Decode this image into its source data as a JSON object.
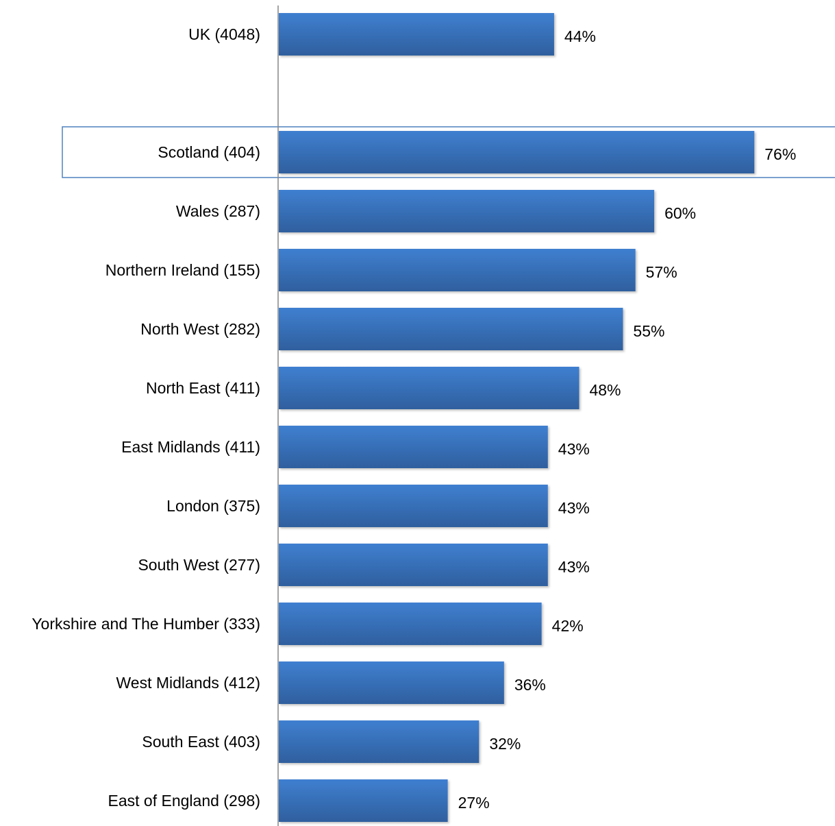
{
  "chart_data": {
    "type": "bar",
    "orientation": "horizontal",
    "categories": [
      "UK (4048)",
      "",
      "Scotland (404)",
      "Wales (287)",
      "Northern Ireland (155)",
      "North West (282)",
      "North East (411)",
      "East Midlands (411)",
      "London (375)",
      "South West (277)",
      "Yorkshire and The Humber (333)",
      "West Midlands (412)",
      "South East (403)",
      "East of England (298)"
    ],
    "values": [
      44,
      null,
      76,
      60,
      57,
      55,
      48,
      43,
      43,
      43,
      42,
      36,
      32,
      27
    ],
    "data_labels": [
      "44%",
      "",
      "76%",
      "60%",
      "57%",
      "55%",
      "48%",
      "43%",
      "43%",
      "43%",
      "42%",
      "36%",
      "32%",
      "27%"
    ],
    "title": "",
    "xlabel": "",
    "ylabel": "",
    "xlim": [
      0,
      89
    ],
    "unit": "%",
    "grid": false,
    "legend": "none",
    "highlighted_category": "Scotland (404)",
    "colors": {
      "bar_top": "#3f7fd0",
      "bar_bottom": "#2f5f9e",
      "axis": "#868686",
      "highlight_border": "#4f81bd"
    }
  }
}
